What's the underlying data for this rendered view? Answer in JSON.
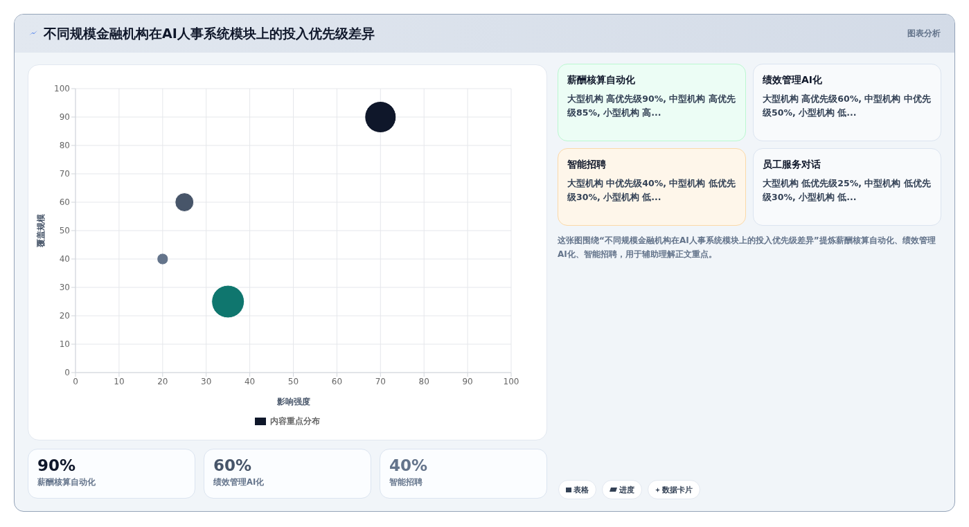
{
  "chart_data": [
    {
      "type": "bubble",
      "title": "不同规模金融机构在AI人事系统模块上的投入优先级差异",
      "xlabel": "影响强度",
      "ylabel": "覆盖规模",
      "x": [
        70,
        25,
        20,
        35
      ],
      "series": [
        {
          "name": "内容重点分布",
          "color": "#0f172a",
          "colors": [
            "#0f172a",
            "#475569",
            "#64748b",
            "#0f766e"
          ],
          "values": [
            90,
            60,
            40,
            25
          ],
          "sizes": [
            0.92,
            0.33,
            0.12,
            1
          ]
        }
      ],
      "xlim": [
        0,
        100
      ],
      "xticks": [
        0,
        10,
        20,
        30,
        40,
        50,
        60,
        70,
        80,
        90,
        100
      ],
      "ylim": [
        0,
        100
      ],
      "yticks": [
        0,
        10,
        20,
        30,
        40,
        50,
        60,
        70,
        80,
        90,
        100
      ],
      "grid": true,
      "legend": "bottom"
    },
    {
      "type": "other",
      "annotations": [
        "图表分析",
        "薪酬核算自动化",
        "大型机构 高优先级90%, 中型机构 高优先级85%, 小型机构 高...",
        "绩效管理AI化",
        "大型机构 高优先级60%, 中型机构 中优先级50%, 小型机构 低...",
        "智能招聘",
        "大型机构 中优先级40%, 中型机构 低优先级30%, 小型机构 低...",
        "员工服务对话",
        "大型机构 低优先级25%, 中型机构 低优先级30%, 小型机构 低...",
        "这张图围绕“不同规模金融机构在AI人事系统模块上的投入优先级差异”提炼薪酬核算自动化、绩效管理AI化、智能招聘，用于辅助理解正文重点。",
        "90%",
        "薪酬核算自动化",
        "60%",
        "绩效管理AI化",
        "40%",
        "智能招聘",
        "表格",
        "进度",
        "数据卡片"
      ]
    }
  ]
}
